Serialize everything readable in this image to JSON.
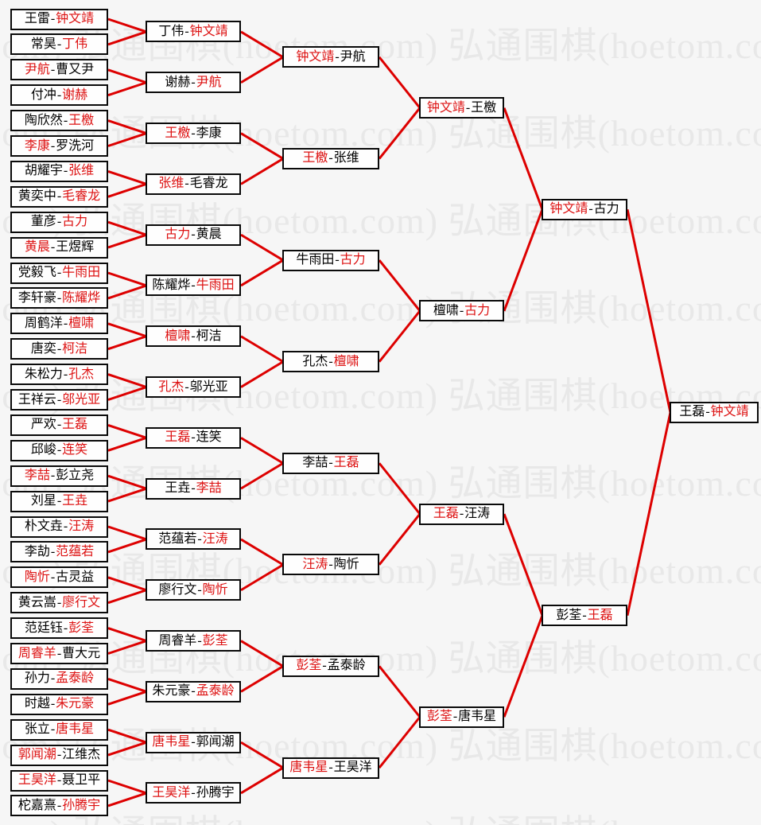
{
  "watermark": {
    "text": "弘通围棋(hoetom.com)",
    "color": "#e8e8e8"
  },
  "colors": {
    "page_background": "#f6f6f6",
    "box_background": "#fefefe",
    "box_border": "#0a0a0a",
    "player_text": "#000000",
    "winner_text": "#dd1111",
    "connector": "#dd0000"
  },
  "bracket": {
    "separator": "-",
    "rounds": [
      {
        "matches": [
          {
            "p1": "王雷",
            "p2": "钟文靖",
            "winner": 2
          },
          {
            "p1": "常昊",
            "p2": "丁伟",
            "winner": 2
          },
          {
            "p1": "尹航",
            "p2": "曹又尹",
            "winner": 1
          },
          {
            "p1": "付冲",
            "p2": "谢赫",
            "winner": 2
          },
          {
            "p1": "陶欣然",
            "p2": "王檄",
            "winner": 2
          },
          {
            "p1": "李康",
            "p2": "罗洗河",
            "winner": 1
          },
          {
            "p1": "胡耀宇",
            "p2": "张维",
            "winner": 2
          },
          {
            "p1": "黄奕中",
            "p2": "毛睿龙",
            "winner": 2
          },
          {
            "p1": "董彦",
            "p2": "古力",
            "winner": 2
          },
          {
            "p1": "黄晨",
            "p2": "王煜辉",
            "winner": 1
          },
          {
            "p1": "党毅飞",
            "p2": "牛雨田",
            "winner": 2
          },
          {
            "p1": "李轩豪",
            "p2": "陈耀烨",
            "winner": 2
          },
          {
            "p1": "周鹤洋",
            "p2": "檀啸",
            "winner": 2
          },
          {
            "p1": "唐奕",
            "p2": "柯洁",
            "winner": 2
          },
          {
            "p1": "朱松力",
            "p2": "孔杰",
            "winner": 2
          },
          {
            "p1": "王祥云",
            "p2": "邬光亚",
            "winner": 2
          },
          {
            "p1": "严欢",
            "p2": "王磊",
            "winner": 2
          },
          {
            "p1": "邱峻",
            "p2": "连笑",
            "winner": 2
          },
          {
            "p1": "李喆",
            "p2": "彭立尧",
            "winner": 1
          },
          {
            "p1": "刘星",
            "p2": "王垚",
            "winner": 2
          },
          {
            "p1": "朴文垚",
            "p2": "汪涛",
            "winner": 2
          },
          {
            "p1": "李劼",
            "p2": "范蕴若",
            "winner": 2
          },
          {
            "p1": "陶忻",
            "p2": "古灵益",
            "winner": 1
          },
          {
            "p1": "黄云嵩",
            "p2": "廖行文",
            "winner": 2
          },
          {
            "p1": "范廷钰",
            "p2": "彭荃",
            "winner": 2
          },
          {
            "p1": "周睿羊",
            "p2": "曹大元",
            "winner": 1
          },
          {
            "p1": "孙力",
            "p2": "孟泰龄",
            "winner": 2
          },
          {
            "p1": "时越",
            "p2": "朱元豪",
            "winner": 2
          },
          {
            "p1": "张立",
            "p2": "唐韦星",
            "winner": 2
          },
          {
            "p1": "郭闻潮",
            "p2": "江维杰",
            "winner": 1
          },
          {
            "p1": "王昊洋",
            "p2": "聂卫平",
            "winner": 1
          },
          {
            "p1": "柁嘉熹",
            "p2": "孙腾宇",
            "winner": 2
          }
        ]
      },
      {
        "matches": [
          {
            "p1": "丁伟",
            "p2": "钟文靖",
            "winner": 2
          },
          {
            "p1": "谢赫",
            "p2": "尹航",
            "winner": 2
          },
          {
            "p1": "王檄",
            "p2": "李康",
            "winner": 1
          },
          {
            "p1": "张维",
            "p2": "毛睿龙",
            "winner": 1
          },
          {
            "p1": "古力",
            "p2": "黄晨",
            "winner": 1
          },
          {
            "p1": "陈耀烨",
            "p2": "牛雨田",
            "winner": 2
          },
          {
            "p1": "檀啸",
            "p2": "柯洁",
            "winner": 1
          },
          {
            "p1": "孔杰",
            "p2": "邬光亚",
            "winner": 1
          },
          {
            "p1": "王磊",
            "p2": "连笑",
            "winner": 1
          },
          {
            "p1": "王垚",
            "p2": "李喆",
            "winner": 2
          },
          {
            "p1": "范蕴若",
            "p2": "汪涛",
            "winner": 2
          },
          {
            "p1": "廖行文",
            "p2": "陶忻",
            "winner": 2
          },
          {
            "p1": "周睿羊",
            "p2": "彭荃",
            "winner": 2
          },
          {
            "p1": "朱元豪",
            "p2": "孟泰龄",
            "winner": 2
          },
          {
            "p1": "唐韦星",
            "p2": "郭闻潮",
            "winner": 1
          },
          {
            "p1": "王昊洋",
            "p2": "孙腾宇",
            "winner": 1
          }
        ]
      },
      {
        "matches": [
          {
            "p1": "钟文靖",
            "p2": "尹航",
            "winner": 1
          },
          {
            "p1": "王檄",
            "p2": "张维",
            "winner": 1
          },
          {
            "p1": "牛雨田",
            "p2": "古力",
            "winner": 2
          },
          {
            "p1": "孔杰",
            "p2": "檀啸",
            "winner": 2
          },
          {
            "p1": "李喆",
            "p2": "王磊",
            "winner": 2
          },
          {
            "p1": "汪涛",
            "p2": "陶忻",
            "winner": 1
          },
          {
            "p1": "彭荃",
            "p2": "孟泰龄",
            "winner": 1
          },
          {
            "p1": "唐韦星",
            "p2": "王昊洋",
            "winner": 1
          }
        ]
      },
      {
        "matches": [
          {
            "p1": "钟文靖",
            "p2": "王檄",
            "winner": 1
          },
          {
            "p1": "檀啸",
            "p2": "古力",
            "winner": 2
          },
          {
            "p1": "王磊",
            "p2": "汪涛",
            "winner": 1
          },
          {
            "p1": "彭荃",
            "p2": "唐韦星",
            "winner": 1
          }
        ]
      },
      {
        "matches": [
          {
            "p1": "钟文靖",
            "p2": "古力",
            "winner": 1
          },
          {
            "p1": "彭荃",
            "p2": "王磊",
            "winner": 2
          }
        ]
      },
      {
        "matches": [
          {
            "p1": "王磊",
            "p2": "钟文靖",
            "winner": 2
          }
        ]
      }
    ]
  }
}
